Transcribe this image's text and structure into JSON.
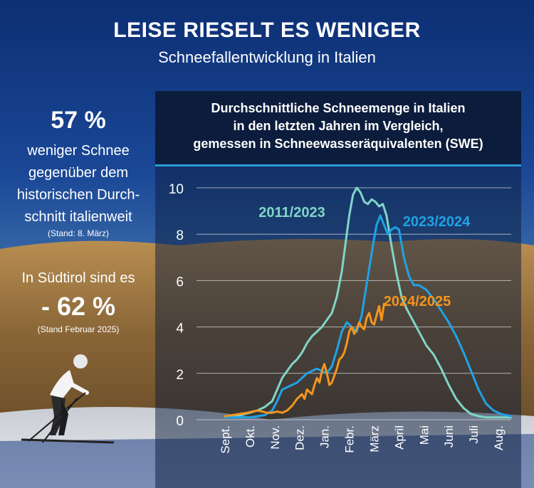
{
  "header": {
    "title": "LEISE RIESELT ES WENIGER",
    "subtitle": "Schneefallentwicklung in Italien"
  },
  "stats": {
    "italy_value": "57 %",
    "italy_text": [
      "weniger Schnee",
      "gegenüber dem",
      "historischen Durch-",
      "schnitt italienweit"
    ],
    "italy_note": "(Stand: 8. März)",
    "suedtirol_intro": "In Südtirol sind es",
    "suedtirol_value": "- 62 %",
    "suedtirol_note": "(Stand Februar 2025)"
  },
  "colors": {
    "series_2011_2023": "#7fd6c8",
    "series_2023_2024": "#1fa3e6",
    "series_2024_2025": "#f2961e",
    "title_box": "#0c1c3c",
    "title_rule": "#2a9bd8"
  },
  "chart_data": {
    "type": "line",
    "title": "Durchschnittliche Schneemenge in Italien in den letzten Jahren im Vergleich, gemessen in Schneewasseräquivalenten (SWE)",
    "title_lines": [
      "Durchschnittliche Schneemenge in Italien",
      "in den letzten Jahren im Vergleich,",
      "gemessen in Schneewasseräquivalenten (SWE)"
    ],
    "xlabel": "",
    "ylabel": "",
    "ylim": [
      0,
      10
    ],
    "yticks": [
      0,
      2,
      4,
      6,
      8,
      10
    ],
    "categories": [
      "Sept.",
      "Okt.",
      "Nov.",
      "Dez.",
      "Jan.",
      "Febr.",
      "März",
      "April",
      "Mai",
      "Juni",
      "Juli",
      "Aug."
    ],
    "grid": true,
    "legend": "inline labels",
    "series": [
      {
        "name": "2011/2023",
        "color": "#7fd6c8",
        "x": [
          0,
          0.3,
          0.6,
          1,
          1.3,
          1.6,
          1.9,
          2.1,
          2.3,
          2.5,
          2.7,
          2.9,
          3.1,
          3.3,
          3.5,
          3.7,
          3.9,
          4.1,
          4.3,
          4.5,
          4.7,
          4.85,
          5.0,
          5.15,
          5.3,
          5.45,
          5.6,
          5.75,
          5.9,
          6.05,
          6.2,
          6.35,
          6.5,
          6.7,
          6.9,
          7.1,
          7.3,
          7.5,
          7.8,
          8.1,
          8.4,
          8.7,
          9.0,
          9.3,
          9.6,
          9.9,
          10.2,
          10.5,
          10.8,
          11.1,
          11.5
        ],
        "y": [
          0.15,
          0.15,
          0.2,
          0.3,
          0.4,
          0.55,
          0.8,
          1.3,
          1.8,
          2.1,
          2.4,
          2.6,
          2.9,
          3.3,
          3.6,
          3.8,
          4.0,
          4.3,
          4.6,
          5.3,
          6.4,
          7.6,
          8.8,
          9.7,
          10.0,
          9.8,
          9.4,
          9.3,
          9.5,
          9.4,
          9.2,
          9.3,
          8.8,
          7.5,
          6.3,
          5.3,
          4.8,
          4.4,
          3.8,
          3.2,
          2.8,
          2.2,
          1.5,
          0.9,
          0.5,
          0.25,
          0.15,
          0.1,
          0.1,
          0.1,
          0.1
        ]
      },
      {
        "name": "2023/2024",
        "color": "#1fa3e6",
        "x": [
          0,
          0.3,
          0.6,
          1,
          1.3,
          1.6,
          1.9,
          2.1,
          2.3,
          2.5,
          2.7,
          2.9,
          3.1,
          3.3,
          3.5,
          3.7,
          3.9,
          4.1,
          4.3,
          4.5,
          4.7,
          4.9,
          5.1,
          5.3,
          5.5,
          5.65,
          5.8,
          5.95,
          6.1,
          6.25,
          6.4,
          6.55,
          6.7,
          6.85,
          7.0,
          7.2,
          7.4,
          7.6,
          7.8,
          8.1,
          8.4,
          8.7,
          9.0,
          9.3,
          9.6,
          9.9,
          10.2,
          10.5,
          10.8,
          11.1,
          11.5
        ],
        "y": [
          0.1,
          0.1,
          0.1,
          0.1,
          0.15,
          0.2,
          0.4,
          0.8,
          1.3,
          1.4,
          1.5,
          1.6,
          1.8,
          2.0,
          2.1,
          2.2,
          2.1,
          2.0,
          2.3,
          3.0,
          3.8,
          4.2,
          4.0,
          3.8,
          4.5,
          5.5,
          6.5,
          7.5,
          8.4,
          8.8,
          8.4,
          8.0,
          8.2,
          8.3,
          8.2,
          7.0,
          6.2,
          5.8,
          5.8,
          5.6,
          5.2,
          4.7,
          4.2,
          3.6,
          2.9,
          2.1,
          1.3,
          0.7,
          0.4,
          0.25,
          0.15
        ]
      },
      {
        "name": "2024/2025",
        "color": "#f2961e",
        "x": [
          0,
          0.3,
          0.6,
          0.9,
          1.1,
          1.3,
          1.5,
          1.7,
          1.9,
          2.1,
          2.3,
          2.5,
          2.7,
          2.9,
          3.1,
          3.2,
          3.3,
          3.4,
          3.5,
          3.6,
          3.7,
          3.8,
          3.9,
          4.0,
          4.1,
          4.2,
          4.3,
          4.4,
          4.5,
          4.6,
          4.7,
          4.8,
          4.9,
          5.0,
          5.1,
          5.2,
          5.3,
          5.4,
          5.5,
          5.6,
          5.7,
          5.8,
          5.9,
          6.0,
          6.1,
          6.2,
          6.3,
          6.4
        ],
        "y": [
          0.15,
          0.2,
          0.25,
          0.3,
          0.35,
          0.4,
          0.35,
          0.3,
          0.3,
          0.35,
          0.3,
          0.4,
          0.6,
          0.9,
          1.1,
          0.9,
          1.3,
          1.2,
          1.1,
          1.5,
          1.8,
          1.6,
          2.1,
          2.4,
          2.0,
          1.5,
          1.6,
          1.9,
          2.2,
          2.6,
          2.7,
          2.9,
          3.3,
          3.8,
          4.0,
          3.7,
          3.9,
          4.2,
          4.0,
          3.9,
          4.4,
          4.6,
          4.2,
          4.1,
          4.5,
          4.9,
          4.3,
          5.0
        ]
      }
    ],
    "labels": [
      {
        "text": "2011/2023",
        "series": "2011/2023"
      },
      {
        "text": "2023/2024",
        "series": "2023/2024"
      },
      {
        "text": "2024/2025",
        "series": "2024/2025"
      }
    ]
  }
}
